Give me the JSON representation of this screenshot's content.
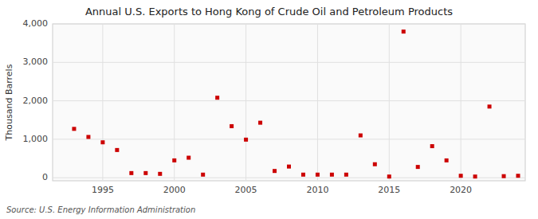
{
  "chart_data": {
    "type": "scatter",
    "title": "Annual U.S. Exports to Hong Kong of Crude Oil and Petroleum Products",
    "ylabel": "Thousand Barrels",
    "source": "Source: U.S. Energy Information Administration",
    "x": [
      1993,
      1994,
      1995,
      1996,
      1997,
      1998,
      1999,
      2000,
      2001,
      2002,
      2003,
      2004,
      2005,
      2006,
      2007,
      2008,
      2009,
      2010,
      2011,
      2012,
      2013,
      2014,
      2015,
      2016,
      2017,
      2018,
      2019,
      2020,
      2021,
      2022,
      2023,
      2024
    ],
    "values": [
      1270,
      1060,
      920,
      720,
      120,
      120,
      100,
      450,
      520,
      80,
      2080,
      1340,
      990,
      1430,
      175,
      290,
      80,
      80,
      80,
      80,
      1100,
      350,
      30,
      3800,
      280,
      820,
      450,
      50,
      30,
      1850,
      40,
      50
    ],
    "color": "#cc0000",
    "marker": "square",
    "xlim": [
      1991.5,
      2024.5
    ],
    "ylim": [
      -80,
      4000
    ],
    "xticks": [
      1995,
      2000,
      2005,
      2010,
      2015,
      2020
    ],
    "yticks": [
      0,
      {
        "value": 1000,
        "label": "1,000"
      },
      {
        "value": 2000,
        "label": "2,000"
      },
      {
        "value": 3000,
        "label": "3,000"
      },
      {
        "value": 4000,
        "label": "4,000"
      }
    ],
    "grid": true
  }
}
